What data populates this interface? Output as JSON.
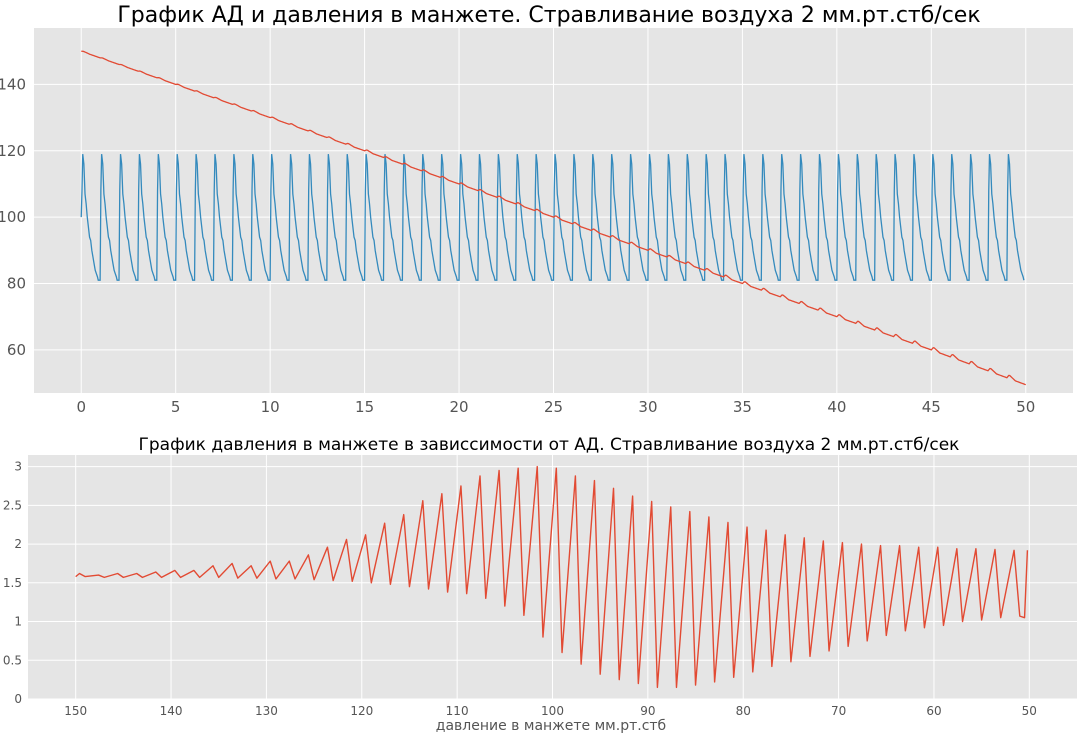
{
  "chart_data": [
    {
      "type": "line",
      "title": "График АД и давления в манжете. Стравливание воздуха 2 мм.рт.стб/сек",
      "xlabel": "",
      "ylabel": "",
      "xlim": [
        -2.5,
        52.5
      ],
      "ylim": [
        47,
        157
      ],
      "x_ticks": [
        0,
        5,
        10,
        15,
        20,
        25,
        30,
        35,
        40,
        45,
        50
      ],
      "x_tick_labels": [
        "0",
        "5",
        "10",
        "15",
        "20",
        "25",
        "30",
        "35",
        "40",
        "45",
        "50"
      ],
      "y_ticks": [
        60,
        80,
        100,
        120,
        140
      ],
      "y_tick_labels": [
        "60",
        "80",
        "100",
        "120",
        "140"
      ],
      "grid": true,
      "series": [
        {
          "color": "#348ABD",
          "period": 1.0,
          "waveform": {
            "phase": [
              0.0,
              0.04,
              0.08,
              0.14,
              0.2,
              0.26,
              0.32,
              0.38,
              0.44,
              0.5,
              0.56,
              0.62,
              0.68,
              0.74,
              0.8,
              0.86,
              0.9,
              0.94,
              1.0
            ],
            "value": [
              81,
              108,
              119,
              116,
              107,
              104,
              100,
              97,
              94,
              93,
              90,
              88,
              86,
              84,
              83,
              82,
              81,
              81,
              81
            ]
          },
          "first_point": [
            0,
            100
          ],
          "last_point": [
            49.9,
            81
          ]
        },
        {
          "color": "#E24A33",
          "x": [
            0,
            5,
            10,
            15,
            20,
            25,
            30,
            35,
            40,
            45,
            50
          ],
          "values": [
            150,
            140,
            130,
            120,
            110,
            100,
            90,
            80,
            70,
            60,
            49.5
          ],
          "ripple": "small heartbeat-synchronous bumps, 1 per second"
        }
      ]
    },
    {
      "type": "line",
      "title": "График давления в манжете в зависсимости от АД. Стравливание воздуха 2 мм.рт.стб/сек",
      "xlabel": "давление в манжете мм.рт.стб",
      "ylabel": "",
      "xlim": [
        155,
        45
      ],
      "ylim": [
        0,
        3.15
      ],
      "x_ticks": [
        150,
        140,
        130,
        120,
        110,
        100,
        90,
        80,
        70,
        60,
        50
      ],
      "x_tick_labels": [
        "150",
        "140",
        "130",
        "120",
        "110",
        "100",
        "90",
        "80",
        "70",
        "60",
        "50"
      ],
      "y_ticks": [
        0,
        0.5,
        1,
        1.5,
        2,
        2.5,
        3
      ],
      "y_tick_labels": [
        "0",
        "0.5",
        "1",
        "1.5",
        "2",
        "2.5",
        "3"
      ],
      "grid": true,
      "series": [
        {
          "color": "#E24A33",
          "baseline": 1.58,
          "x_start": 150,
          "x_end": 50.5,
          "beat_spacing": 2,
          "peaks": [
            [
              150,
              1.62
            ],
            [
              148,
              1.6
            ],
            [
              146,
              1.62
            ],
            [
              144,
              1.62
            ],
            [
              142,
              1.64
            ],
            [
              140,
              1.66
            ],
            [
              138,
              1.66
            ],
            [
              136,
              1.72
            ],
            [
              134,
              1.75
            ],
            [
              132,
              1.72
            ],
            [
              130,
              1.78
            ],
            [
              128,
              1.78
            ],
            [
              126,
              1.86
            ],
            [
              124,
              1.96
            ],
            [
              122,
              2.06
            ],
            [
              120,
              2.12
            ],
            [
              118,
              2.27
            ],
            [
              116,
              2.38
            ],
            [
              114,
              2.56
            ],
            [
              112,
              2.65
            ],
            [
              110,
              2.75
            ],
            [
              108,
              2.88
            ],
            [
              106,
              2.95
            ],
            [
              104,
              2.98
            ],
            [
              102,
              3.0
            ],
            [
              100,
              2.98
            ],
            [
              98,
              2.88
            ],
            [
              96,
              2.82
            ],
            [
              94,
              2.72
            ],
            [
              92,
              2.62
            ],
            [
              90,
              2.55
            ],
            [
              88,
              2.48
            ],
            [
              86,
              2.42
            ],
            [
              84,
              2.35
            ],
            [
              82,
              2.28
            ],
            [
              80,
              2.22
            ],
            [
              78,
              2.18
            ],
            [
              76,
              2.12
            ],
            [
              74,
              2.08
            ],
            [
              72,
              2.04
            ],
            [
              70,
              2.02
            ],
            [
              68,
              2.0
            ],
            [
              66,
              1.98
            ],
            [
              64,
              1.98
            ],
            [
              62,
              1.96
            ],
            [
              60,
              1.96
            ],
            [
              58,
              1.94
            ],
            [
              56,
              1.94
            ],
            [
              54,
              1.93
            ],
            [
              52,
              1.92
            ],
            [
              50.6,
              1.92
            ]
          ],
          "troughs": [
            [
              149,
              1.58
            ],
            [
              147,
              1.57
            ],
            [
              145,
              1.57
            ],
            [
              143,
              1.57
            ],
            [
              141,
              1.57
            ],
            [
              139,
              1.57
            ],
            [
              137,
              1.57
            ],
            [
              135,
              1.57
            ],
            [
              133,
              1.56
            ],
            [
              131,
              1.56
            ],
            [
              129,
              1.55
            ],
            [
              127,
              1.55
            ],
            [
              125,
              1.54
            ],
            [
              123,
              1.53
            ],
            [
              121,
              1.52
            ],
            [
              119,
              1.5
            ],
            [
              117,
              1.48
            ],
            [
              115,
              1.45
            ],
            [
              113,
              1.42
            ],
            [
              111,
              1.38
            ],
            [
              109,
              1.36
            ],
            [
              107,
              1.3
            ],
            [
              105,
              1.2
            ],
            [
              103,
              1.08
            ],
            [
              101,
              0.8
            ],
            [
              99,
              0.6
            ],
            [
              97,
              0.45
            ],
            [
              95,
              0.32
            ],
            [
              93,
              0.25
            ],
            [
              91,
              0.2
            ],
            [
              89,
              0.15
            ],
            [
              87,
              0.15
            ],
            [
              85,
              0.18
            ],
            [
              83,
              0.22
            ],
            [
              81,
              0.28
            ],
            [
              79,
              0.35
            ],
            [
              77,
              0.42
            ],
            [
              75,
              0.48
            ],
            [
              73,
              0.55
            ],
            [
              71,
              0.62
            ],
            [
              69,
              0.68
            ],
            [
              67,
              0.75
            ],
            [
              65,
              0.82
            ],
            [
              63,
              0.88
            ],
            [
              61,
              0.92
            ],
            [
              59,
              0.95
            ],
            [
              57,
              1.0
            ],
            [
              55,
              1.02
            ],
            [
              53,
              1.05
            ],
            [
              51,
              1.07
            ],
            [
              50.5,
              1.05
            ]
          ]
        }
      ]
    }
  ]
}
